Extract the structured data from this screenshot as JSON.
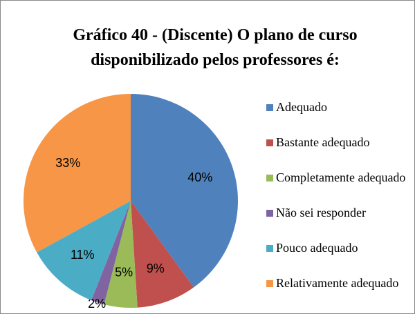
{
  "chart_data": {
    "type": "pie",
    "title": "Gráfico 40 - (Discente) O plano de curso disponibilizado pelos professores é:",
    "categories": [
      "Adequado",
      "Bastante adequado",
      "Completamente adequado",
      "Não sei responder",
      "Pouco adequado",
      "Relativamente adequado"
    ],
    "values": [
      40,
      9,
      5,
      2,
      11,
      33
    ],
    "value_labels": [
      "40%",
      "9%",
      "5%",
      "2%",
      "11%",
      "33%"
    ],
    "colors": [
      "#4f81bd",
      "#c0504d",
      "#9bbb59",
      "#8064a2",
      "#4bacc6",
      "#f79646"
    ],
    "legend": "right"
  }
}
